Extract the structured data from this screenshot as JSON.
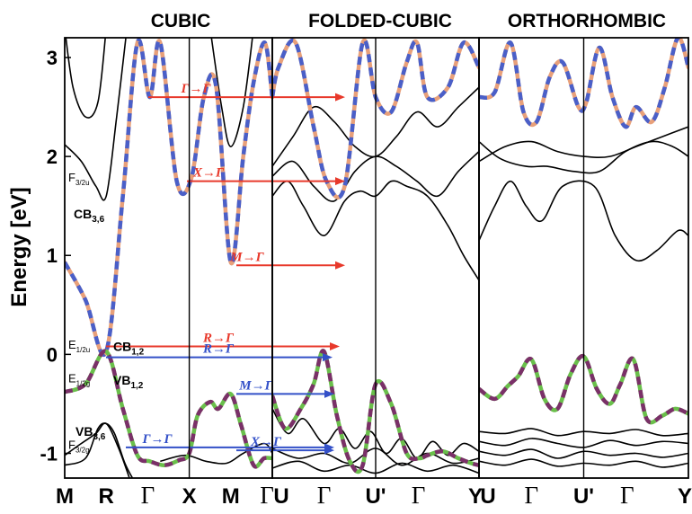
{
  "chart_data": {
    "type": "line",
    "ylabel": "Energy [eV]",
    "ylim": [
      -1.25,
      3.2
    ],
    "yticks": [
      "3",
      "2",
      "1",
      "0",
      "-1"
    ],
    "panels": [
      {
        "title": "CUBIC",
        "xticks": [
          "M",
          "R",
          "Γ",
          "X",
          "M",
          "Γ"
        ]
      },
      {
        "title": "FOLDED-CUBIC",
        "xticks": [
          "U",
          "Γ",
          "U'",
          "Γ",
          "Y"
        ]
      },
      {
        "title": "ORTHORHOMBIC",
        "xticks": [
          "U",
          "Γ",
          "U'",
          "Γ",
          "Y"
        ]
      }
    ],
    "band_labels": [
      {
        "main": "F",
        "sub": "3/2u",
        "y": 1.8
      },
      {
        "main": "CB",
        "sub": "3,6",
        "y": 1.43
      },
      {
        "main": "E",
        "sub": "1/2u",
        "y": 0.11
      },
      {
        "main": "CB",
        "sub": "1,2",
        "y": 0.09
      },
      {
        "main": "E",
        "sub": "1/2g",
        "y": -0.23
      },
      {
        "main": "VB",
        "sub": "1,2",
        "y": -0.25
      },
      {
        "main": "VB",
        "sub": "3,6",
        "y": -0.77
      },
      {
        "main": "F",
        "sub": "3/2g",
        "y": -0.9
      }
    ],
    "transitions": [
      {
        "label": "Γ→Γ",
        "color": "#e8392b",
        "energy": 2.6
      },
      {
        "label": "X→Γ",
        "color": "#e8392b",
        "energy": 1.75
      },
      {
        "label": "M→Γ",
        "color": "#e8392b",
        "energy": 0.9
      },
      {
        "label": "R→Γ",
        "color": "#e8392b",
        "energy": 0.08
      },
      {
        "label": "R→Γ",
        "color": "#3350c8",
        "energy": -0.03
      },
      {
        "label": "M→Γ",
        "color": "#3350c8",
        "energy": -0.4
      },
      {
        "label": "X→Γ",
        "color": "#3350c8",
        "energy": -0.97
      },
      {
        "label": "Γ→Γ",
        "color": "#3350c8",
        "energy": -0.94
      }
    ],
    "highlighted_conduction_band": {
      "colors": [
        "#e8a07a",
        "#4a5fc8"
      ],
      "cubic": {
        "x": [
          0,
          0.5,
          1,
          1.4,
          1.75,
          2.05,
          2.3,
          2.7,
          3.05,
          3.35,
          3.65,
          4,
          4.3,
          4.55,
          4.82,
          5
        ],
        "y": [
          0.93,
          0.55,
          0.03,
          1.6,
          3.15,
          2.6,
          3.15,
          1.75,
          1.78,
          2.6,
          2.7,
          0.93,
          2.0,
          2.75,
          3.15,
          2.6
        ]
      },
      "folded": {
        "x": [
          0,
          0.12,
          0.45,
          0.8,
          1.05,
          1.4,
          1.75,
          2,
          2.3,
          2.6,
          2.8,
          3,
          3.4,
          3.7,
          4
        ],
        "y": [
          2.6,
          2.9,
          3.15,
          2.3,
          1.75,
          1.7,
          3.15,
          2.6,
          2.45,
          2.95,
          3.15,
          2.6,
          2.7,
          3.15,
          2.9
        ]
      },
      "ortho": {
        "x": [
          0,
          0.3,
          0.6,
          0.85,
          1.1,
          1.35,
          1.6,
          1.9,
          2.05,
          2.3,
          2.55,
          2.8,
          3,
          3.3,
          3.55,
          3.8,
          4
        ],
        "y": [
          2.6,
          2.65,
          3.15,
          2.45,
          2.35,
          2.8,
          2.95,
          2.5,
          2.55,
          3.1,
          2.6,
          2.3,
          2.5,
          2.35,
          2.7,
          3.2,
          2.9
        ]
      }
    },
    "highlighted_valence_band": {
      "colors": [
        "#6abf4b",
        "#7a3068"
      ],
      "cubic": {
        "x": [
          0,
          0.5,
          1,
          1.4,
          1.75,
          2.05,
          2.4,
          2.75,
          3,
          3.2,
          3.5,
          3.7,
          4,
          4.25,
          4.55,
          4.8,
          5
        ],
        "y": [
          -0.38,
          -0.3,
          0.03,
          -0.55,
          -1.02,
          -1.08,
          -1.12,
          -1.07,
          -1.0,
          -0.62,
          -0.48,
          -0.55,
          -0.4,
          -0.72,
          -1.12,
          -1.05,
          -1.05
        ]
      },
      "folded": {
        "x": [
          0,
          0.25,
          0.55,
          0.8,
          1,
          1.25,
          1.5,
          1.75,
          2,
          2.3,
          2.6,
          2.85,
          3,
          3.3,
          3.6,
          3.85,
          4
        ],
        "y": [
          -0.42,
          -0.75,
          -0.55,
          -0.3,
          0.03,
          -0.62,
          -1.08,
          -1.12,
          -0.3,
          -0.5,
          -1.0,
          -1.05,
          -1.02,
          -0.98,
          -1.05,
          -1.1,
          -1.12
        ]
      },
      "ortho": {
        "x": [
          0,
          0.3,
          0.55,
          0.75,
          1,
          1.25,
          1.5,
          1.75,
          2,
          2.25,
          2.5,
          2.7,
          2.95,
          3.2,
          3.5,
          3.75,
          4
        ],
        "y": [
          -0.35,
          -0.45,
          -0.32,
          -0.22,
          -0.05,
          -0.45,
          -0.55,
          -0.2,
          -0.02,
          -0.35,
          -0.5,
          -0.3,
          -0.05,
          -0.65,
          -0.62,
          -0.55,
          -0.6
        ]
      }
    }
  }
}
